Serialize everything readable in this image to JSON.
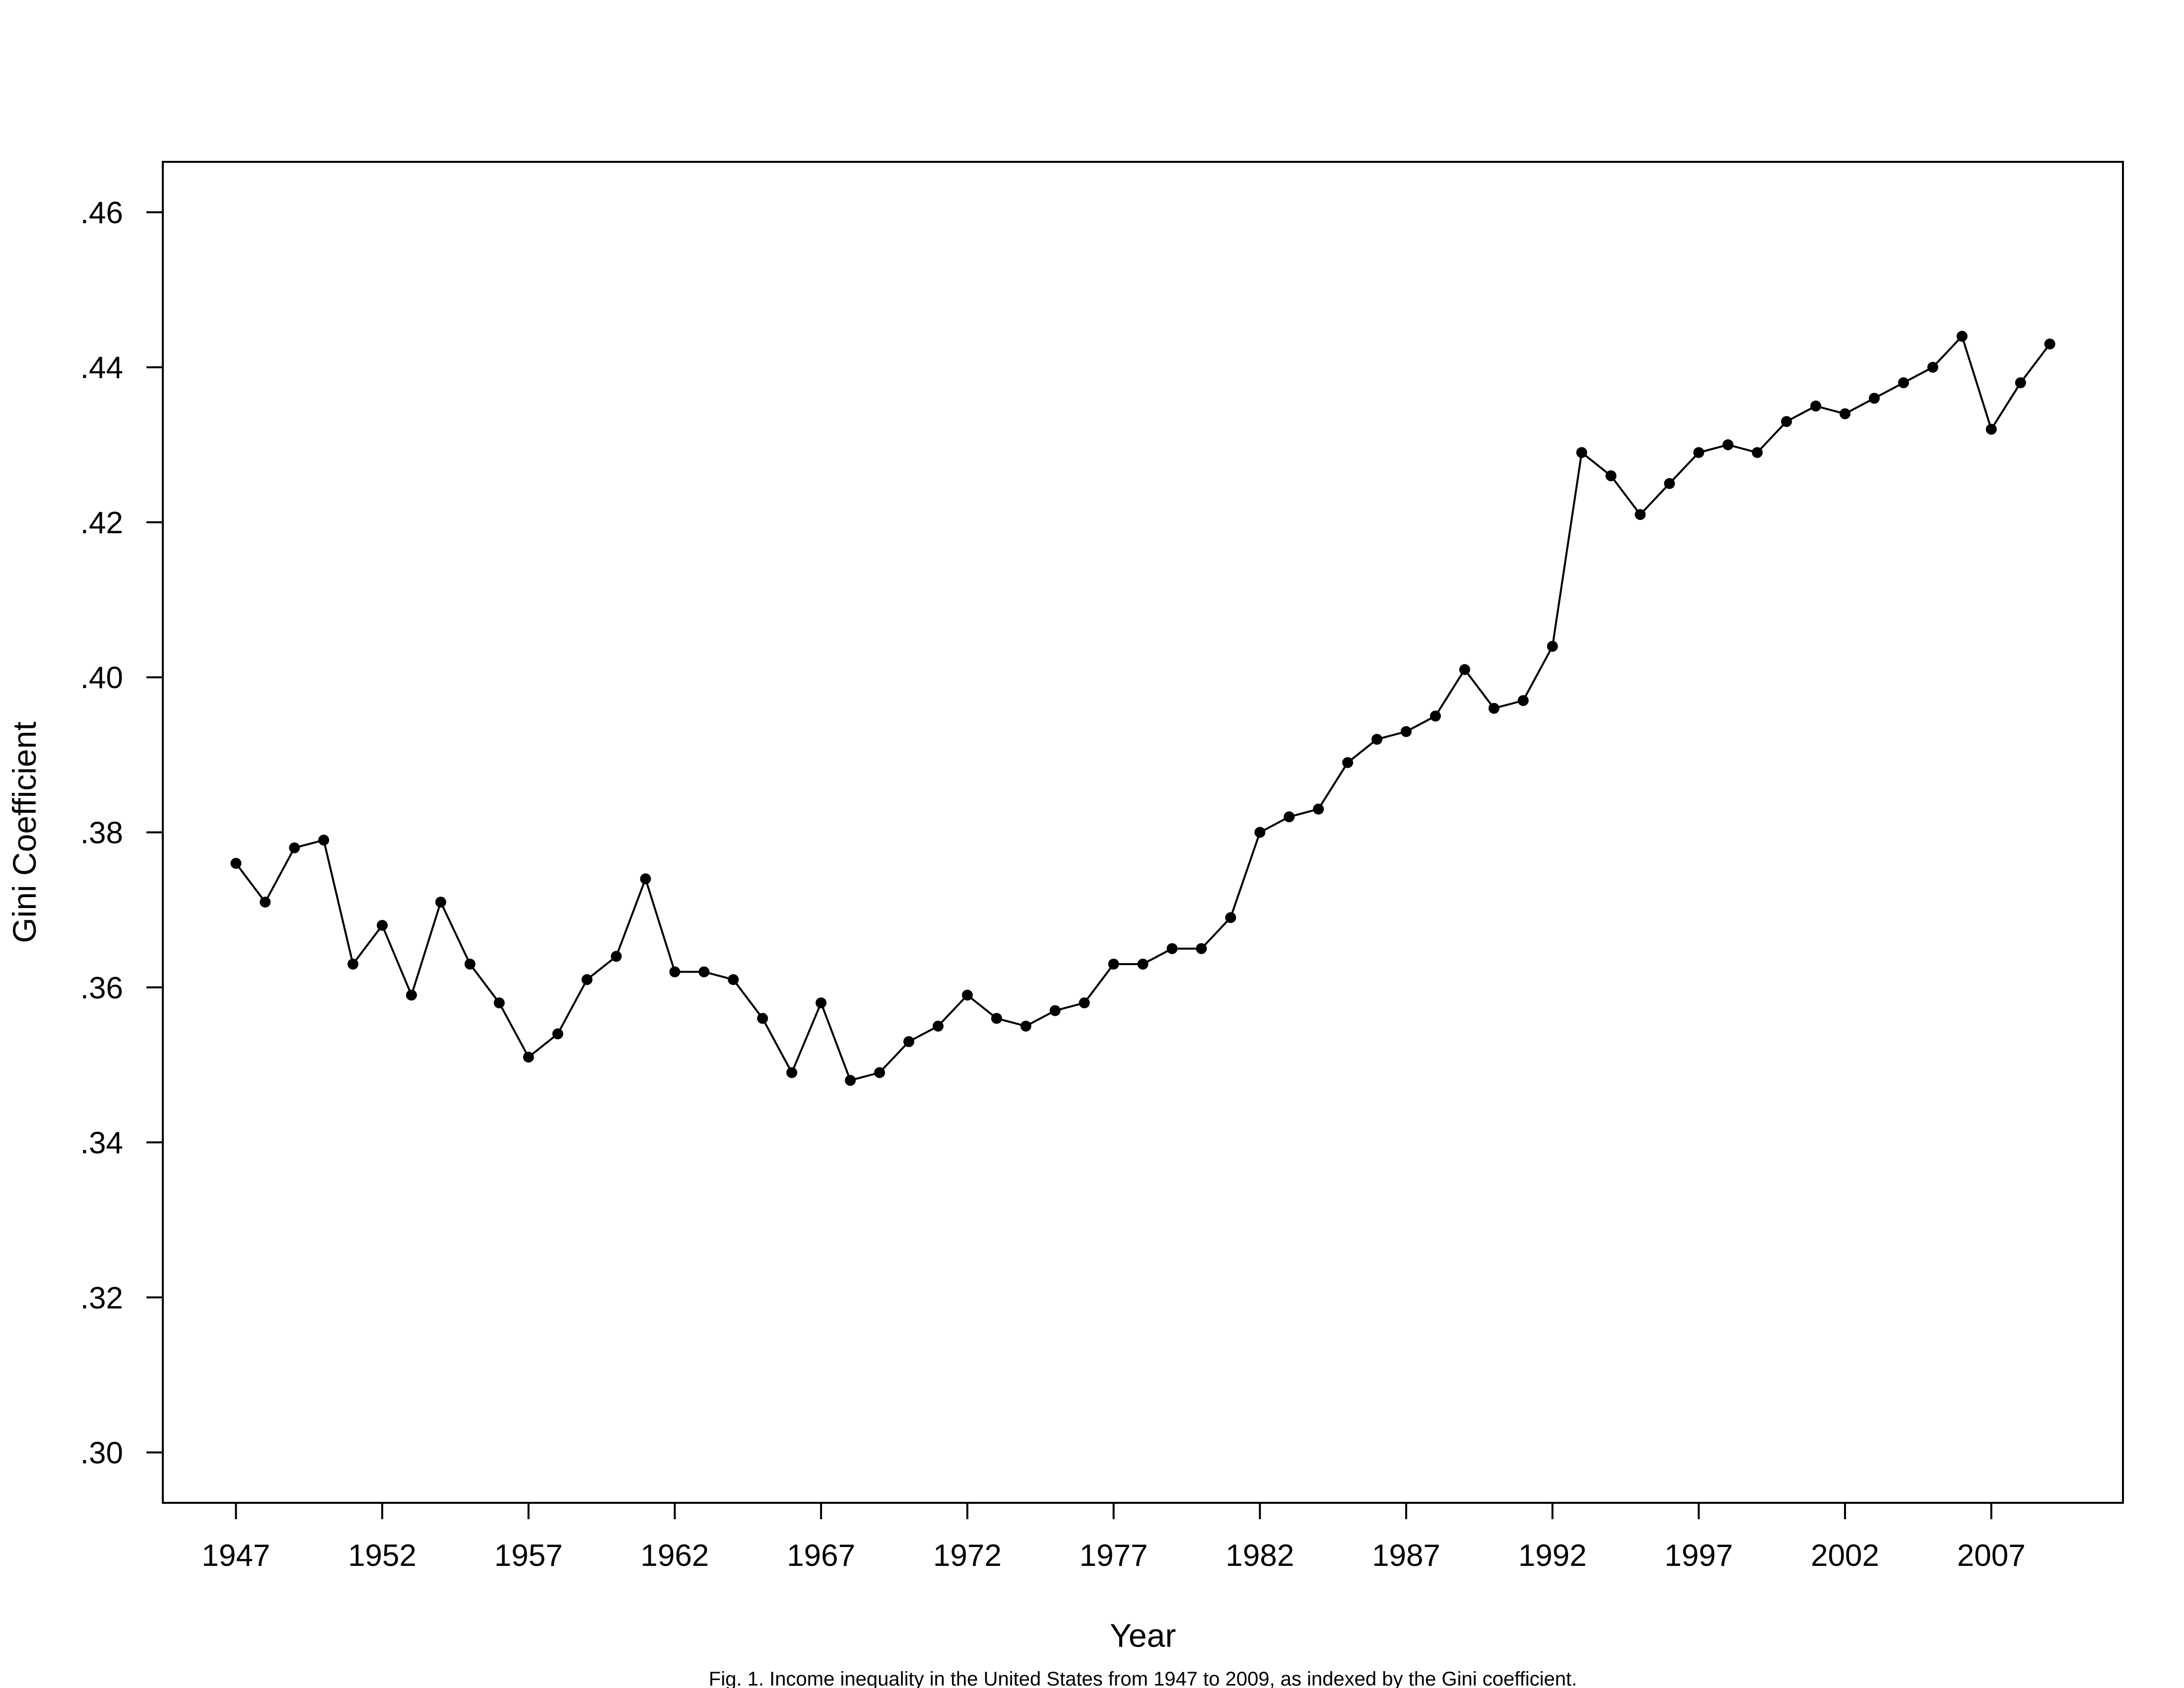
{
  "chart_data": {
    "type": "line",
    "title": "",
    "caption": "Fig. 1. Income inequality in the United States from 1947 to 2009, as indexed by the Gini coefficient.",
    "xlabel": "Year",
    "ylabel": "Gini Coefficient",
    "xlim": [
      1944.5,
      2011.5
    ],
    "ylim": [
      0.2935,
      0.4665
    ],
    "x_ticks": [
      1947,
      1952,
      1957,
      1962,
      1967,
      1972,
      1977,
      1982,
      1987,
      1992,
      1997,
      2002,
      2007
    ],
    "y_ticks": [
      0.3,
      0.32,
      0.34,
      0.36,
      0.38,
      0.4,
      0.42,
      0.44,
      0.46
    ],
    "y_tick_labels": [
      ".30",
      ".32",
      ".34",
      ".36",
      ".38",
      ".40",
      ".42",
      ".44",
      ".46"
    ],
    "grid": false,
    "legend": "none",
    "marker": "filled-circle",
    "line_color": "#000000",
    "series": [
      {
        "x": [
          1947,
          1948,
          1949,
          1950,
          1951,
          1952,
          1953,
          1954,
          1955,
          1956,
          1957,
          1958,
          1959,
          1960,
          1961,
          1962,
          1963,
          1964,
          1965,
          1966,
          1967,
          1968,
          1969,
          1970,
          1971,
          1972,
          1973,
          1974,
          1975,
          1976,
          1977,
          1978,
          1979,
          1980,
          1981,
          1982,
          1983,
          1984,
          1985,
          1986,
          1987,
          1988,
          1989,
          1990,
          1991,
          1992,
          1993,
          1994,
          1995,
          1996,
          1997,
          1998,
          1999,
          2000,
          2001,
          2002,
          2003,
          2004,
          2005,
          2006,
          2007,
          2008,
          2009
        ],
        "values": [
          0.376,
          0.371,
          0.378,
          0.379,
          0.363,
          0.368,
          0.359,
          0.371,
          0.363,
          0.358,
          0.351,
          0.354,
          0.361,
          0.364,
          0.374,
          0.362,
          0.362,
          0.361,
          0.356,
          0.349,
          0.358,
          0.348,
          0.349,
          0.353,
          0.355,
          0.359,
          0.356,
          0.355,
          0.357,
          0.358,
          0.363,
          0.363,
          0.365,
          0.365,
          0.369,
          0.38,
          0.382,
          0.383,
          0.389,
          0.392,
          0.393,
          0.395,
          0.401,
          0.396,
          0.397,
          0.404,
          0.429,
          0.426,
          0.421,
          0.425,
          0.429,
          0.43,
          0.429,
          0.433,
          0.435,
          0.434,
          0.436,
          0.438,
          0.44,
          0.444,
          0.432,
          0.438,
          0.443
        ]
      }
    ]
  }
}
